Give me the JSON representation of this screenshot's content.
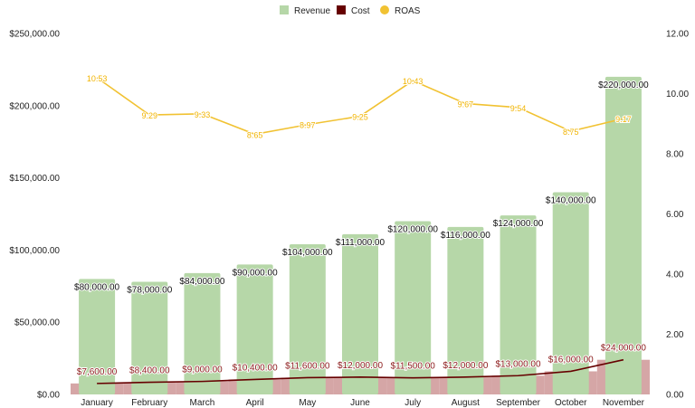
{
  "chart_data": {
    "type": "bar",
    "categories": [
      "January",
      "February",
      "March",
      "April",
      "May",
      "June",
      "July",
      "August",
      "September",
      "October",
      "November"
    ],
    "series": [
      {
        "name": "Revenue",
        "type": "bar",
        "axis": "left",
        "values": [
          80000,
          78000,
          84000,
          90000,
          104000,
          111000,
          120000,
          116000,
          124000,
          140000,
          220000
        ],
        "labels": [
          "$80,000.00",
          "$78,000.00",
          "$84,000.00",
          "$90,000.00",
          "$104,000.00",
          "$111,000.00",
          "$120,000.00",
          "$116,000.00",
          "$124,000.00",
          "$140,000.00",
          "$220,000.00"
        ]
      },
      {
        "name": "Cost",
        "type": "line+area",
        "axis": "left",
        "values": [
          7600,
          8400,
          9000,
          10400,
          11600,
          12000,
          11500,
          12000,
          13000,
          16000,
          24000
        ],
        "labels": [
          "$7,600.00",
          "$8,400.00",
          "$9,000.00",
          "$10,400.00",
          "$11,600.00",
          "$12,000.00",
          "$11,500.00",
          "$12,000.00",
          "$13,000.00",
          "$16,000.00",
          "$24,000.00"
        ]
      },
      {
        "name": "ROAS",
        "type": "line",
        "axis": "right",
        "values": [
          10.53,
          9.29,
          9.33,
          8.65,
          8.97,
          9.25,
          10.43,
          9.67,
          9.54,
          8.75,
          9.17
        ],
        "labels": [
          "10.53",
          "9.29",
          "9.33",
          "8.65",
          "8.97",
          "9.25",
          "10.43",
          "9.67",
          "9.54",
          "8.75",
          "9.17"
        ]
      }
    ],
    "y_left": {
      "ylim": [
        0,
        250000
      ],
      "ticks": [
        0,
        50000,
        100000,
        150000,
        200000,
        250000
      ],
      "tick_labels": [
        "$0.00",
        "$50,000.00",
        "$100,000.00",
        "$150,000.00",
        "$200,000.00",
        "$250,000.00"
      ]
    },
    "y_right": {
      "ylim": [
        0,
        12
      ],
      "ticks": [
        0,
        2,
        4,
        6,
        8,
        10,
        12
      ],
      "tick_labels": [
        "0.00",
        "2.00",
        "4.00",
        "6.00",
        "8.00",
        "10.00",
        "12.00"
      ]
    },
    "legend": {
      "position": "top-center",
      "items": [
        {
          "name": "Revenue",
          "marker": "square",
          "color": "#b6d7a8"
        },
        {
          "name": "Cost",
          "marker": "square",
          "color": "#660000"
        },
        {
          "name": "ROAS",
          "marker": "circle",
          "color": "#f1c232"
        }
      ]
    },
    "colors": {
      "revenue_bar": "#b6d7a8",
      "cost_line": "#660000",
      "cost_area": "#d5a6a6",
      "roas_line": "#f1c232",
      "roas_label": "#f2b400",
      "cost_label": "#8b1a1a"
    },
    "grid": false
  }
}
